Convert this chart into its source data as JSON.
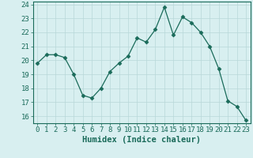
{
  "x": [
    0,
    1,
    2,
    3,
    4,
    5,
    6,
    7,
    8,
    9,
    10,
    11,
    12,
    13,
    14,
    15,
    16,
    17,
    18,
    19,
    20,
    21,
    22,
    23
  ],
  "y": [
    19.8,
    20.4,
    20.4,
    20.2,
    19.0,
    17.5,
    17.3,
    18.0,
    19.2,
    19.8,
    20.3,
    21.6,
    21.3,
    22.2,
    23.8,
    21.8,
    23.1,
    22.7,
    22.0,
    21.0,
    19.4,
    17.1,
    16.7,
    15.7
  ],
  "line_color": "#1a6b5a",
  "marker": "D",
  "marker_size": 2.5,
  "bg_color": "#d8eff0",
  "grid_color": "#b8d8d8",
  "xlabel": "Humidex (Indice chaleur)",
  "xlim": [
    -0.5,
    23.5
  ],
  "ylim": [
    15.5,
    24.2
  ],
  "yticks": [
    16,
    17,
    18,
    19,
    20,
    21,
    22,
    23,
    24
  ],
  "xticks": [
    0,
    1,
    2,
    3,
    4,
    5,
    6,
    7,
    8,
    9,
    10,
    11,
    12,
    13,
    14,
    15,
    16,
    17,
    18,
    19,
    20,
    21,
    22,
    23
  ],
  "xlabel_fontsize": 7.5,
  "tick_fontsize": 6.5
}
